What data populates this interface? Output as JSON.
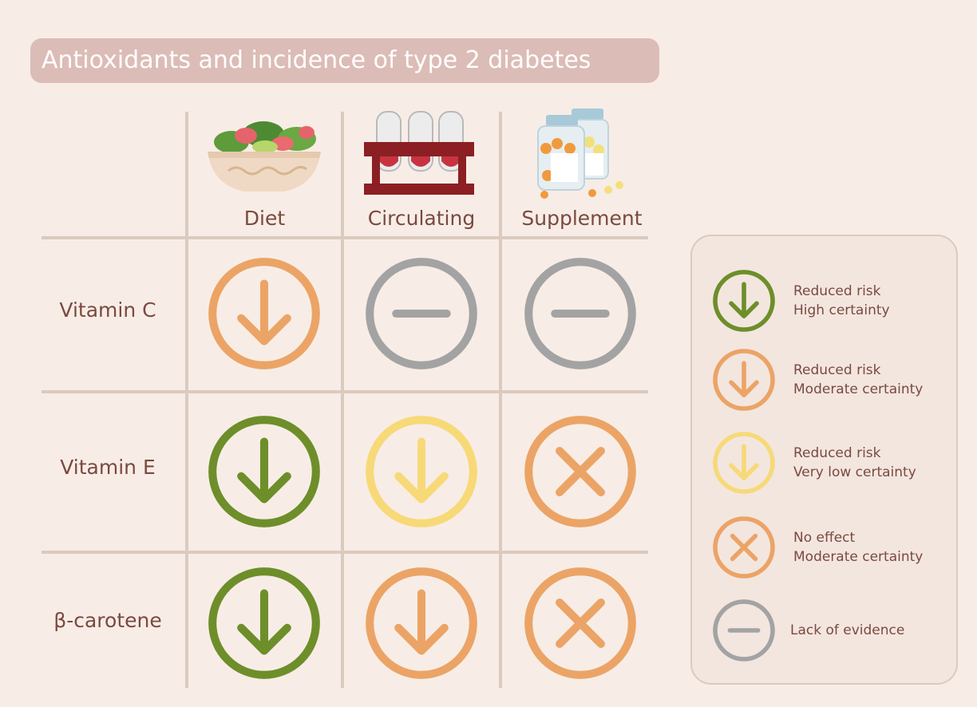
{
  "title": "Antioxidants and incidence of type 2 diabetes",
  "columns": [
    {
      "label": "Diet",
      "illustration": "salad-bowl-icon"
    },
    {
      "label": "Circulating",
      "illustration": "blood-test-tubes-icon"
    },
    {
      "label": "Supplement",
      "illustration": "supplement-bottles-icon"
    }
  ],
  "rows": [
    {
      "label": "Vitamin C",
      "cells": [
        "reduced-moderate",
        "lack-of-evidence",
        "lack-of-evidence"
      ]
    },
    {
      "label": "Vitamin E",
      "cells": [
        "reduced-high",
        "reduced-very-low",
        "no-effect-moderate"
      ]
    },
    {
      "label": "β-carotene",
      "cells": [
        "reduced-high",
        "reduced-moderate",
        "no-effect-moderate"
      ]
    }
  ],
  "legend": [
    {
      "key": "reduced-high",
      "line1": "Reduced risk",
      "line2": "High certainty",
      "icon": "arrow-down-icon",
      "color": "#6e8e2a"
    },
    {
      "key": "reduced-moderate",
      "line1": "Reduced risk",
      "line2": "Moderate certainty",
      "icon": "arrow-down-icon",
      "color": "#eba466"
    },
    {
      "key": "reduced-very-low",
      "line1": "Reduced risk",
      "line2": "Very low certainty",
      "icon": "arrow-down-icon",
      "color": "#f7d978"
    },
    {
      "key": "no-effect-moderate",
      "line1": "No effect",
      "line2": "Moderate certainty",
      "icon": "cross-icon",
      "color": "#eba466"
    },
    {
      "key": "lack-of-evidence",
      "line1": "Lack of evidence",
      "line2": "",
      "icon": "dash-icon",
      "color": "#a3a3a3"
    }
  ],
  "colors": {
    "background": "#f7ede6",
    "title_pill": "#dcbcb6",
    "grid": "#dccabf",
    "text": "#7a4a40"
  }
}
